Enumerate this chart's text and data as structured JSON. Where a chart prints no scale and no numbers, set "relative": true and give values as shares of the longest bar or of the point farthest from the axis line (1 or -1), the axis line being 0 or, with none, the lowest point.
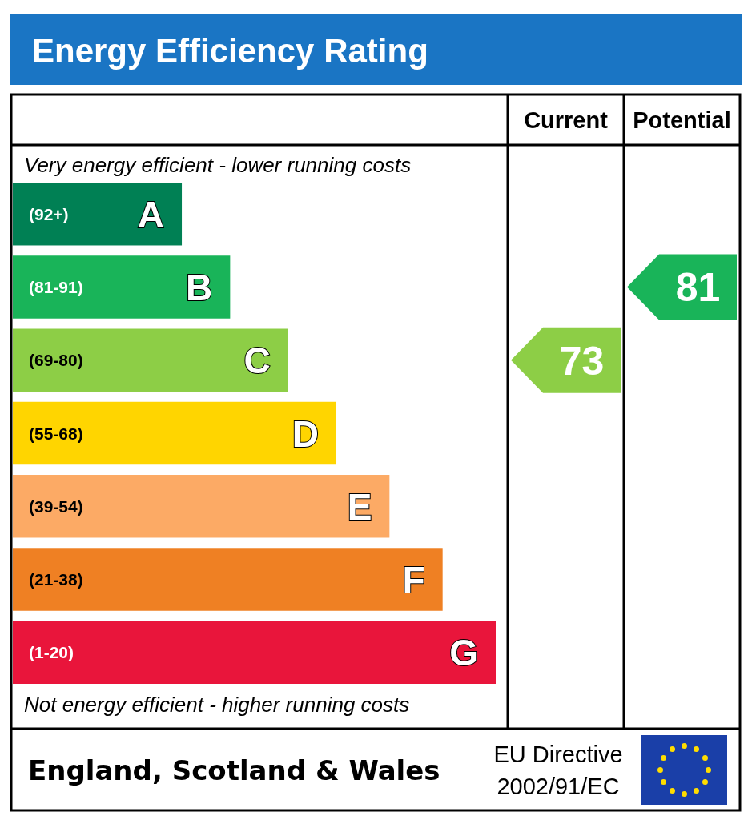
{
  "chart_data": {
    "type": "bar",
    "orientation": "horizontal",
    "relative": true,
    "title": "Energy Efficiency Rating",
    "categories": [
      "A",
      "B",
      "C",
      "D",
      "E",
      "F",
      "G"
    ],
    "values": [
      0.35,
      0.45,
      0.57,
      0.67,
      0.78,
      0.89,
      1
    ],
    "colors": [
      "#008054",
      "#19b459",
      "#8dce46",
      "#ffd500",
      "#fcaa65",
      "#ef8023",
      "#e9153b"
    ],
    "annotations": [
      "Very energy efficient - lower running costs",
      "Not energy efficient - higher running costs",
      "England, Scotland & Wales",
      "EU Directive",
      "2002/91/EC",
      "Current",
      "Potential",
      "(92+)",
      "(81-91)",
      "(69-80)",
      "(55-68)",
      "(39-54)",
      "(21-38)",
      "(1-20)",
      "73",
      "81"
    ]
  }
}
